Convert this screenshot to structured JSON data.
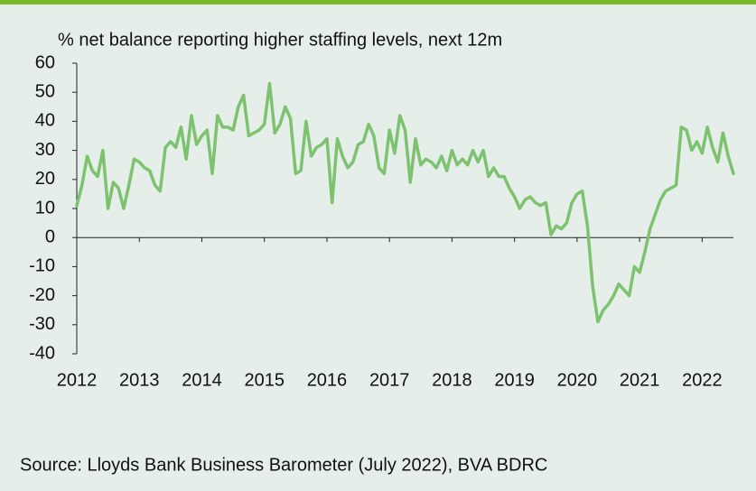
{
  "chart_data": {
    "type": "line",
    "title": "% net balance reporting higher staffing levels, next 12m",
    "source": "Source: Lloyds Bank Business Barometer (July 2022), BVA BDRC",
    "categories": [
      "2012",
      null,
      null,
      null,
      null,
      null,
      null,
      null,
      null,
      null,
      null,
      null,
      "2013",
      null,
      null,
      null,
      null,
      null,
      null,
      null,
      null,
      null,
      null,
      null,
      "2014",
      null,
      null,
      null,
      null,
      null,
      null,
      null,
      null,
      null,
      null,
      null,
      "2015",
      null,
      null,
      null,
      null,
      null,
      null,
      null,
      null,
      null,
      null,
      null,
      "2016",
      null,
      null,
      null,
      null,
      null,
      null,
      null,
      null,
      null,
      null,
      null,
      "2017",
      null,
      null,
      null,
      null,
      null,
      null,
      null,
      null,
      null,
      null,
      null,
      "2018",
      null,
      null,
      null,
      null,
      null,
      null,
      null,
      null,
      null,
      null,
      null,
      "2019",
      null,
      null,
      null,
      null,
      null,
      null,
      null,
      null,
      null,
      null,
      null,
      "2020",
      null,
      null,
      null,
      null,
      null,
      null,
      null,
      null,
      null,
      null,
      null,
      "2021",
      null,
      null,
      null,
      null,
      null,
      null,
      null,
      null,
      null,
      null,
      null,
      "2022",
      null,
      null,
      null,
      null,
      null,
      null
    ],
    "values": [
      11,
      18,
      28,
      23,
      21,
      30,
      10,
      19,
      17,
      10,
      18,
      27,
      26,
      24,
      23,
      18,
      16,
      31,
      33,
      31,
      38,
      27,
      42,
      32,
      35,
      37,
      22,
      42,
      38,
      38,
      37,
      45,
      49,
      35,
      36,
      37,
      39,
      53,
      36,
      39,
      45,
      41,
      22,
      23,
      40,
      28,
      31,
      32,
      34,
      12,
      34,
      28,
      24,
      26,
      32,
      33,
      39,
      35,
      24,
      22,
      37,
      29,
      42,
      37,
      19,
      34,
      25,
      27,
      26,
      24,
      28,
      23,
      30,
      25,
      27,
      25,
      30,
      26,
      30,
      21,
      24,
      21,
      21,
      17,
      14,
      10,
      13,
      14,
      12,
      11,
      12,
      1,
      4,
      3,
      5,
      12,
      15,
      16,
      4,
      -17,
      -29,
      -25,
      -23,
      -20,
      -16,
      -18,
      -20,
      -10,
      -12,
      -5,
      3,
      8,
      13,
      16,
      17,
      18,
      38,
      37,
      30,
      33,
      29,
      38,
      31,
      26,
      36,
      28,
      22
    ],
    "color": "#7dc36f",
    "ylim": [
      -40,
      60
    ],
    "yticks": [
      -40,
      -30,
      -20,
      -10,
      0,
      10,
      20,
      30,
      40,
      50,
      60
    ]
  }
}
